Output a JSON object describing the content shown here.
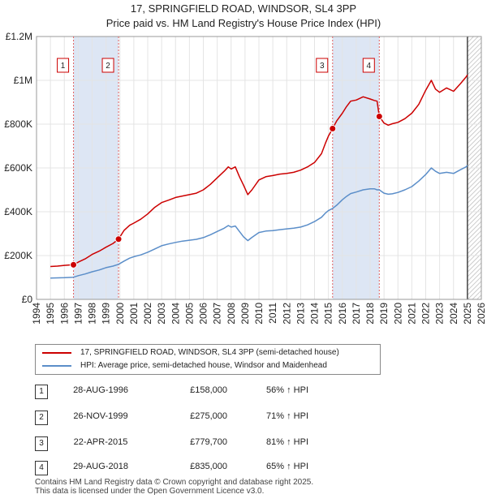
{
  "chart_data": {
    "type": "line",
    "title": "17, SPRINGFIELD ROAD, WINDSOR, SL4 3PP",
    "subtitle": "Price paid vs. HM Land Registry's House Price Index (HPI)",
    "xlim": [
      1995,
      2026
    ],
    "ylim": [
      0,
      1200000
    ],
    "x_ticks": [
      "1994",
      "1995",
      "1996",
      "1997",
      "1998",
      "1999",
      "2000",
      "2001",
      "2002",
      "2003",
      "2004",
      "2005",
      "2006",
      "2007",
      "2008",
      "2009",
      "2010",
      "2011",
      "2012",
      "2013",
      "2014",
      "2015",
      "2016",
      "2017",
      "2018",
      "2019",
      "2020",
      "2021",
      "2022",
      "2023",
      "2024",
      "2025",
      "2026"
    ],
    "y_ticks": [
      {
        "value": 0,
        "label": "£0"
      },
      {
        "value": 200000,
        "label": "£200K"
      },
      {
        "value": 400000,
        "label": "£400K"
      },
      {
        "value": 600000,
        "label": "£600K"
      },
      {
        "value": 800000,
        "label": "£800K"
      },
      {
        "value": 1000000,
        "label": "£1M"
      },
      {
        "value": 1200000,
        "label": "£1.2M"
      }
    ],
    "series": [
      {
        "name": "17, SPRINGFIELD ROAD, WINDSOR, SL4 3PP (semi-detached house)",
        "color": "#cc0000",
        "points": [
          [
            1995.0,
            150000
          ],
          [
            1995.5,
            152000
          ],
          [
            1996.0,
            155000
          ],
          [
            1996.66,
            158000
          ],
          [
            1997.0,
            170000
          ],
          [
            1997.5,
            185000
          ],
          [
            1998.0,
            205000
          ],
          [
            1998.5,
            220000
          ],
          [
            1999.0,
            238000
          ],
          [
            1999.5,
            255000
          ],
          [
            1999.9,
            275000
          ],
          [
            2000.3,
            315000
          ],
          [
            2000.7,
            338000
          ],
          [
            2001.0,
            348000
          ],
          [
            2001.5,
            366000
          ],
          [
            2002.0,
            390000
          ],
          [
            2002.5,
            420000
          ],
          [
            2003.0,
            442000
          ],
          [
            2003.5,
            453000
          ],
          [
            2004.0,
            465000
          ],
          [
            2004.5,
            472000
          ],
          [
            2005.0,
            478000
          ],
          [
            2005.5,
            485000
          ],
          [
            2006.0,
            500000
          ],
          [
            2006.5,
            525000
          ],
          [
            2007.0,
            555000
          ],
          [
            2007.5,
            585000
          ],
          [
            2007.8,
            605000
          ],
          [
            2008.0,
            595000
          ],
          [
            2008.3,
            605000
          ],
          [
            2008.6,
            560000
          ],
          [
            2008.9,
            520000
          ],
          [
            2009.2,
            478000
          ],
          [
            2009.5,
            500000
          ],
          [
            2010.0,
            545000
          ],
          [
            2010.5,
            560000
          ],
          [
            2011.0,
            565000
          ],
          [
            2011.5,
            572000
          ],
          [
            2012.0,
            575000
          ],
          [
            2012.5,
            580000
          ],
          [
            2013.0,
            590000
          ],
          [
            2013.5,
            605000
          ],
          [
            2014.0,
            625000
          ],
          [
            2014.5,
            665000
          ],
          [
            2014.8,
            715000
          ],
          [
            2015.0,
            745000
          ],
          [
            2015.3,
            779700
          ],
          [
            2015.6,
            815000
          ],
          [
            2016.0,
            850000
          ],
          [
            2016.3,
            880000
          ],
          [
            2016.6,
            905000
          ],
          [
            2017.0,
            910000
          ],
          [
            2017.5,
            925000
          ],
          [
            2018.0,
            915000
          ],
          [
            2018.3,
            908000
          ],
          [
            2018.5,
            905000
          ],
          [
            2018.66,
            835000
          ],
          [
            2019.0,
            805000
          ],
          [
            2019.3,
            795000
          ],
          [
            2019.6,
            802000
          ],
          [
            2020.0,
            808000
          ],
          [
            2020.5,
            825000
          ],
          [
            2021.0,
            850000
          ],
          [
            2021.5,
            890000
          ],
          [
            2022.0,
            955000
          ],
          [
            2022.4,
            1000000
          ],
          [
            2022.7,
            960000
          ],
          [
            2023.0,
            945000
          ],
          [
            2023.5,
            965000
          ],
          [
            2024.0,
            950000
          ],
          [
            2024.5,
            985000
          ],
          [
            2024.9,
            1015000
          ],
          [
            2025.0,
            1025000
          ]
        ]
      },
      {
        "name": "HPI: Average price, semi-detached house, Windsor and Maidenhead",
        "color": "#5b8ec9",
        "points": [
          [
            1995.0,
            97000
          ],
          [
            1995.5,
            98000
          ],
          [
            1996.0,
            99000
          ],
          [
            1996.66,
            101000
          ],
          [
            1997.0,
            108000
          ],
          [
            1997.5,
            116000
          ],
          [
            1998.0,
            126000
          ],
          [
            1998.5,
            134000
          ],
          [
            1999.0,
            145000
          ],
          [
            1999.5,
            152000
          ],
          [
            1999.9,
            160000
          ],
          [
            2000.3,
            175000
          ],
          [
            2000.7,
            188000
          ],
          [
            2001.0,
            195000
          ],
          [
            2001.5,
            203000
          ],
          [
            2002.0,
            215000
          ],
          [
            2002.5,
            230000
          ],
          [
            2003.0,
            245000
          ],
          [
            2003.5,
            253000
          ],
          [
            2004.0,
            260000
          ],
          [
            2004.5,
            266000
          ],
          [
            2005.0,
            270000
          ],
          [
            2005.5,
            274000
          ],
          [
            2006.0,
            282000
          ],
          [
            2006.5,
            295000
          ],
          [
            2007.0,
            310000
          ],
          [
            2007.5,
            325000
          ],
          [
            2007.8,
            337000
          ],
          [
            2008.0,
            330000
          ],
          [
            2008.3,
            335000
          ],
          [
            2008.6,
            310000
          ],
          [
            2008.9,
            285000
          ],
          [
            2009.2,
            268000
          ],
          [
            2009.5,
            283000
          ],
          [
            2010.0,
            305000
          ],
          [
            2010.5,
            312000
          ],
          [
            2011.0,
            314000
          ],
          [
            2011.5,
            318000
          ],
          [
            2012.0,
            322000
          ],
          [
            2012.5,
            325000
          ],
          [
            2013.0,
            330000
          ],
          [
            2013.5,
            340000
          ],
          [
            2014.0,
            355000
          ],
          [
            2014.5,
            375000
          ],
          [
            2014.8,
            395000
          ],
          [
            2015.0,
            405000
          ],
          [
            2015.3,
            415000
          ],
          [
            2015.6,
            430000
          ],
          [
            2016.0,
            455000
          ],
          [
            2016.3,
            470000
          ],
          [
            2016.6,
            483000
          ],
          [
            2017.0,
            490000
          ],
          [
            2017.5,
            500000
          ],
          [
            2018.0,
            505000
          ],
          [
            2018.3,
            505000
          ],
          [
            2018.5,
            500000
          ],
          [
            2018.66,
            500000
          ],
          [
            2019.0,
            485000
          ],
          [
            2019.3,
            480000
          ],
          [
            2019.6,
            482000
          ],
          [
            2020.0,
            488000
          ],
          [
            2020.5,
            500000
          ],
          [
            2021.0,
            515000
          ],
          [
            2021.5,
            540000
          ],
          [
            2022.0,
            570000
          ],
          [
            2022.4,
            600000
          ],
          [
            2022.7,
            585000
          ],
          [
            2023.0,
            575000
          ],
          [
            2023.5,
            580000
          ],
          [
            2024.0,
            575000
          ],
          [
            2024.5,
            592000
          ],
          [
            2024.9,
            605000
          ],
          [
            2025.0,
            612000
          ]
        ]
      }
    ],
    "sales": [
      {
        "id": "1",
        "x": 1996.66,
        "price": 158000
      },
      {
        "id": "2",
        "x": 1999.9,
        "price": 275000
      },
      {
        "id": "3",
        "x": 2015.3,
        "price": 779700
      },
      {
        "id": "4",
        "x": 2018.66,
        "price": 835000
      }
    ],
    "shaded_ranges": [
      [
        1996.66,
        1999.9
      ],
      [
        2015.3,
        2018.66
      ]
    ],
    "forecast_start": 2025.0
  },
  "legend": {
    "property": "17, SPRINGFIELD ROAD, WINDSOR, SL4 3PP (semi-detached house)",
    "hpi": "HPI: Average price, semi-detached house, Windsor and Maidenhead"
  },
  "transactions": [
    {
      "id": "1",
      "date": "28-AUG-1996",
      "price": "£158,000",
      "hpi": "56% ↑ HPI"
    },
    {
      "id": "2",
      "date": "26-NOV-1999",
      "price": "£275,000",
      "hpi": "71% ↑ HPI"
    },
    {
      "id": "3",
      "date": "22-APR-2015",
      "price": "£779,700",
      "hpi": "81% ↑ HPI"
    },
    {
      "id": "4",
      "date": "29-AUG-2018",
      "price": "£835,000",
      "hpi": "65% ↑ HPI"
    }
  ],
  "footer": {
    "line1": "Contains HM Land Registry data © Crown copyright and database right 2025.",
    "line2": "This data is licensed under the Open Government Licence v3.0."
  }
}
